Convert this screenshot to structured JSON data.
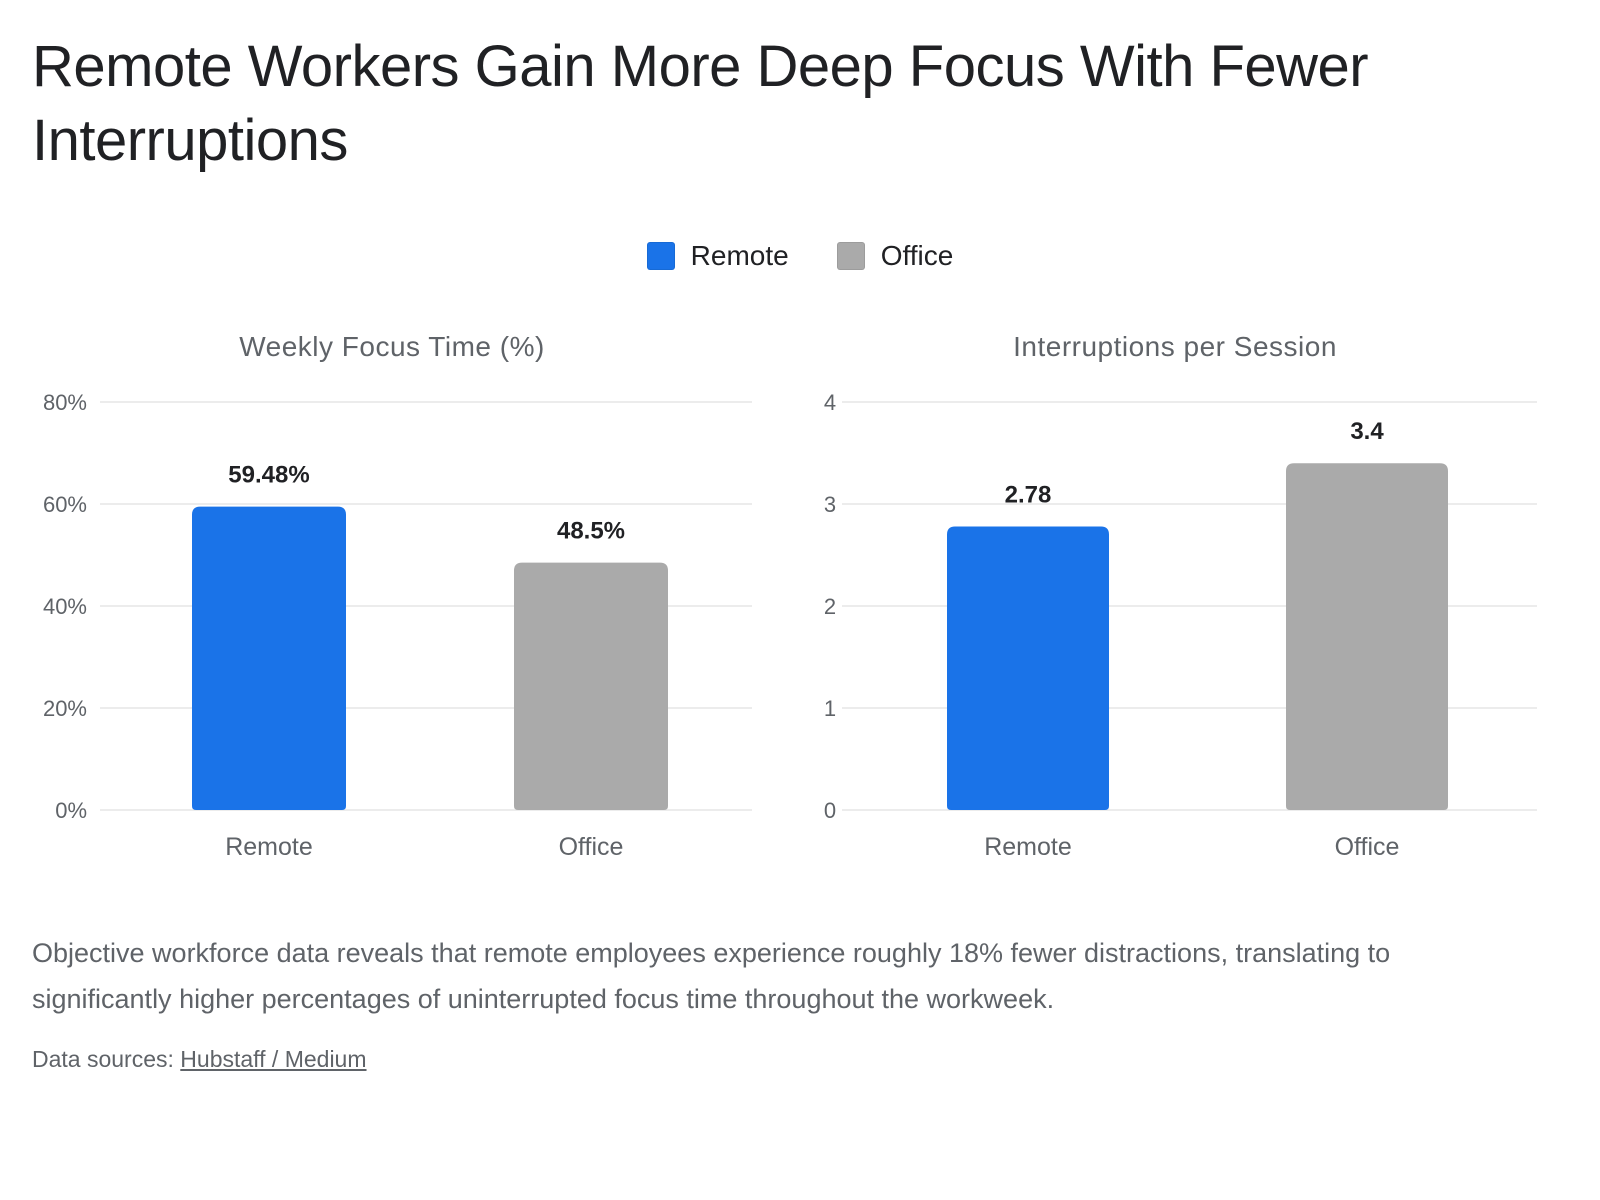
{
  "title": "Remote Workers Gain More Deep Focus With Fewer Interruptions",
  "legend": [
    {
      "label": "Remote",
      "color": "#1a73e8"
    },
    {
      "label": "Office",
      "color": "#aaaaaa"
    }
  ],
  "chart_data": [
    {
      "type": "bar",
      "title": "Weekly Focus Time (%)",
      "categories": [
        "Remote",
        "Office"
      ],
      "values": [
        59.48,
        48.5
      ],
      "value_labels": [
        "59.48%",
        "48.5%"
      ],
      "colors": [
        "#1a73e8",
        "#aaaaaa"
      ],
      "ylim": [
        0,
        80
      ],
      "yticks": [
        0,
        20,
        40,
        60,
        80
      ],
      "ytick_labels": [
        "0%",
        "20%",
        "40%",
        "60%",
        "80%"
      ],
      "grid": true
    },
    {
      "type": "bar",
      "title": "Interruptions per Session",
      "categories": [
        "Remote",
        "Office"
      ],
      "values": [
        2.78,
        3.4
      ],
      "value_labels": [
        "2.78",
        "3.4"
      ],
      "colors": [
        "#1a73e8",
        "#aaaaaa"
      ],
      "ylim": [
        0,
        4
      ],
      "yticks": [
        0,
        1,
        2,
        3,
        4
      ],
      "ytick_labels": [
        "0",
        "1",
        "2",
        "3",
        "4"
      ],
      "grid": true
    }
  ],
  "description": "Objective workforce data reveals that remote employees experience roughly 18% fewer distractions, translating to significantly higher percentages of uninterrupted focus time throughout the workweek.",
  "sources": {
    "prefix": "Data sources: ",
    "link_text": "Hubstaff / Medium"
  }
}
